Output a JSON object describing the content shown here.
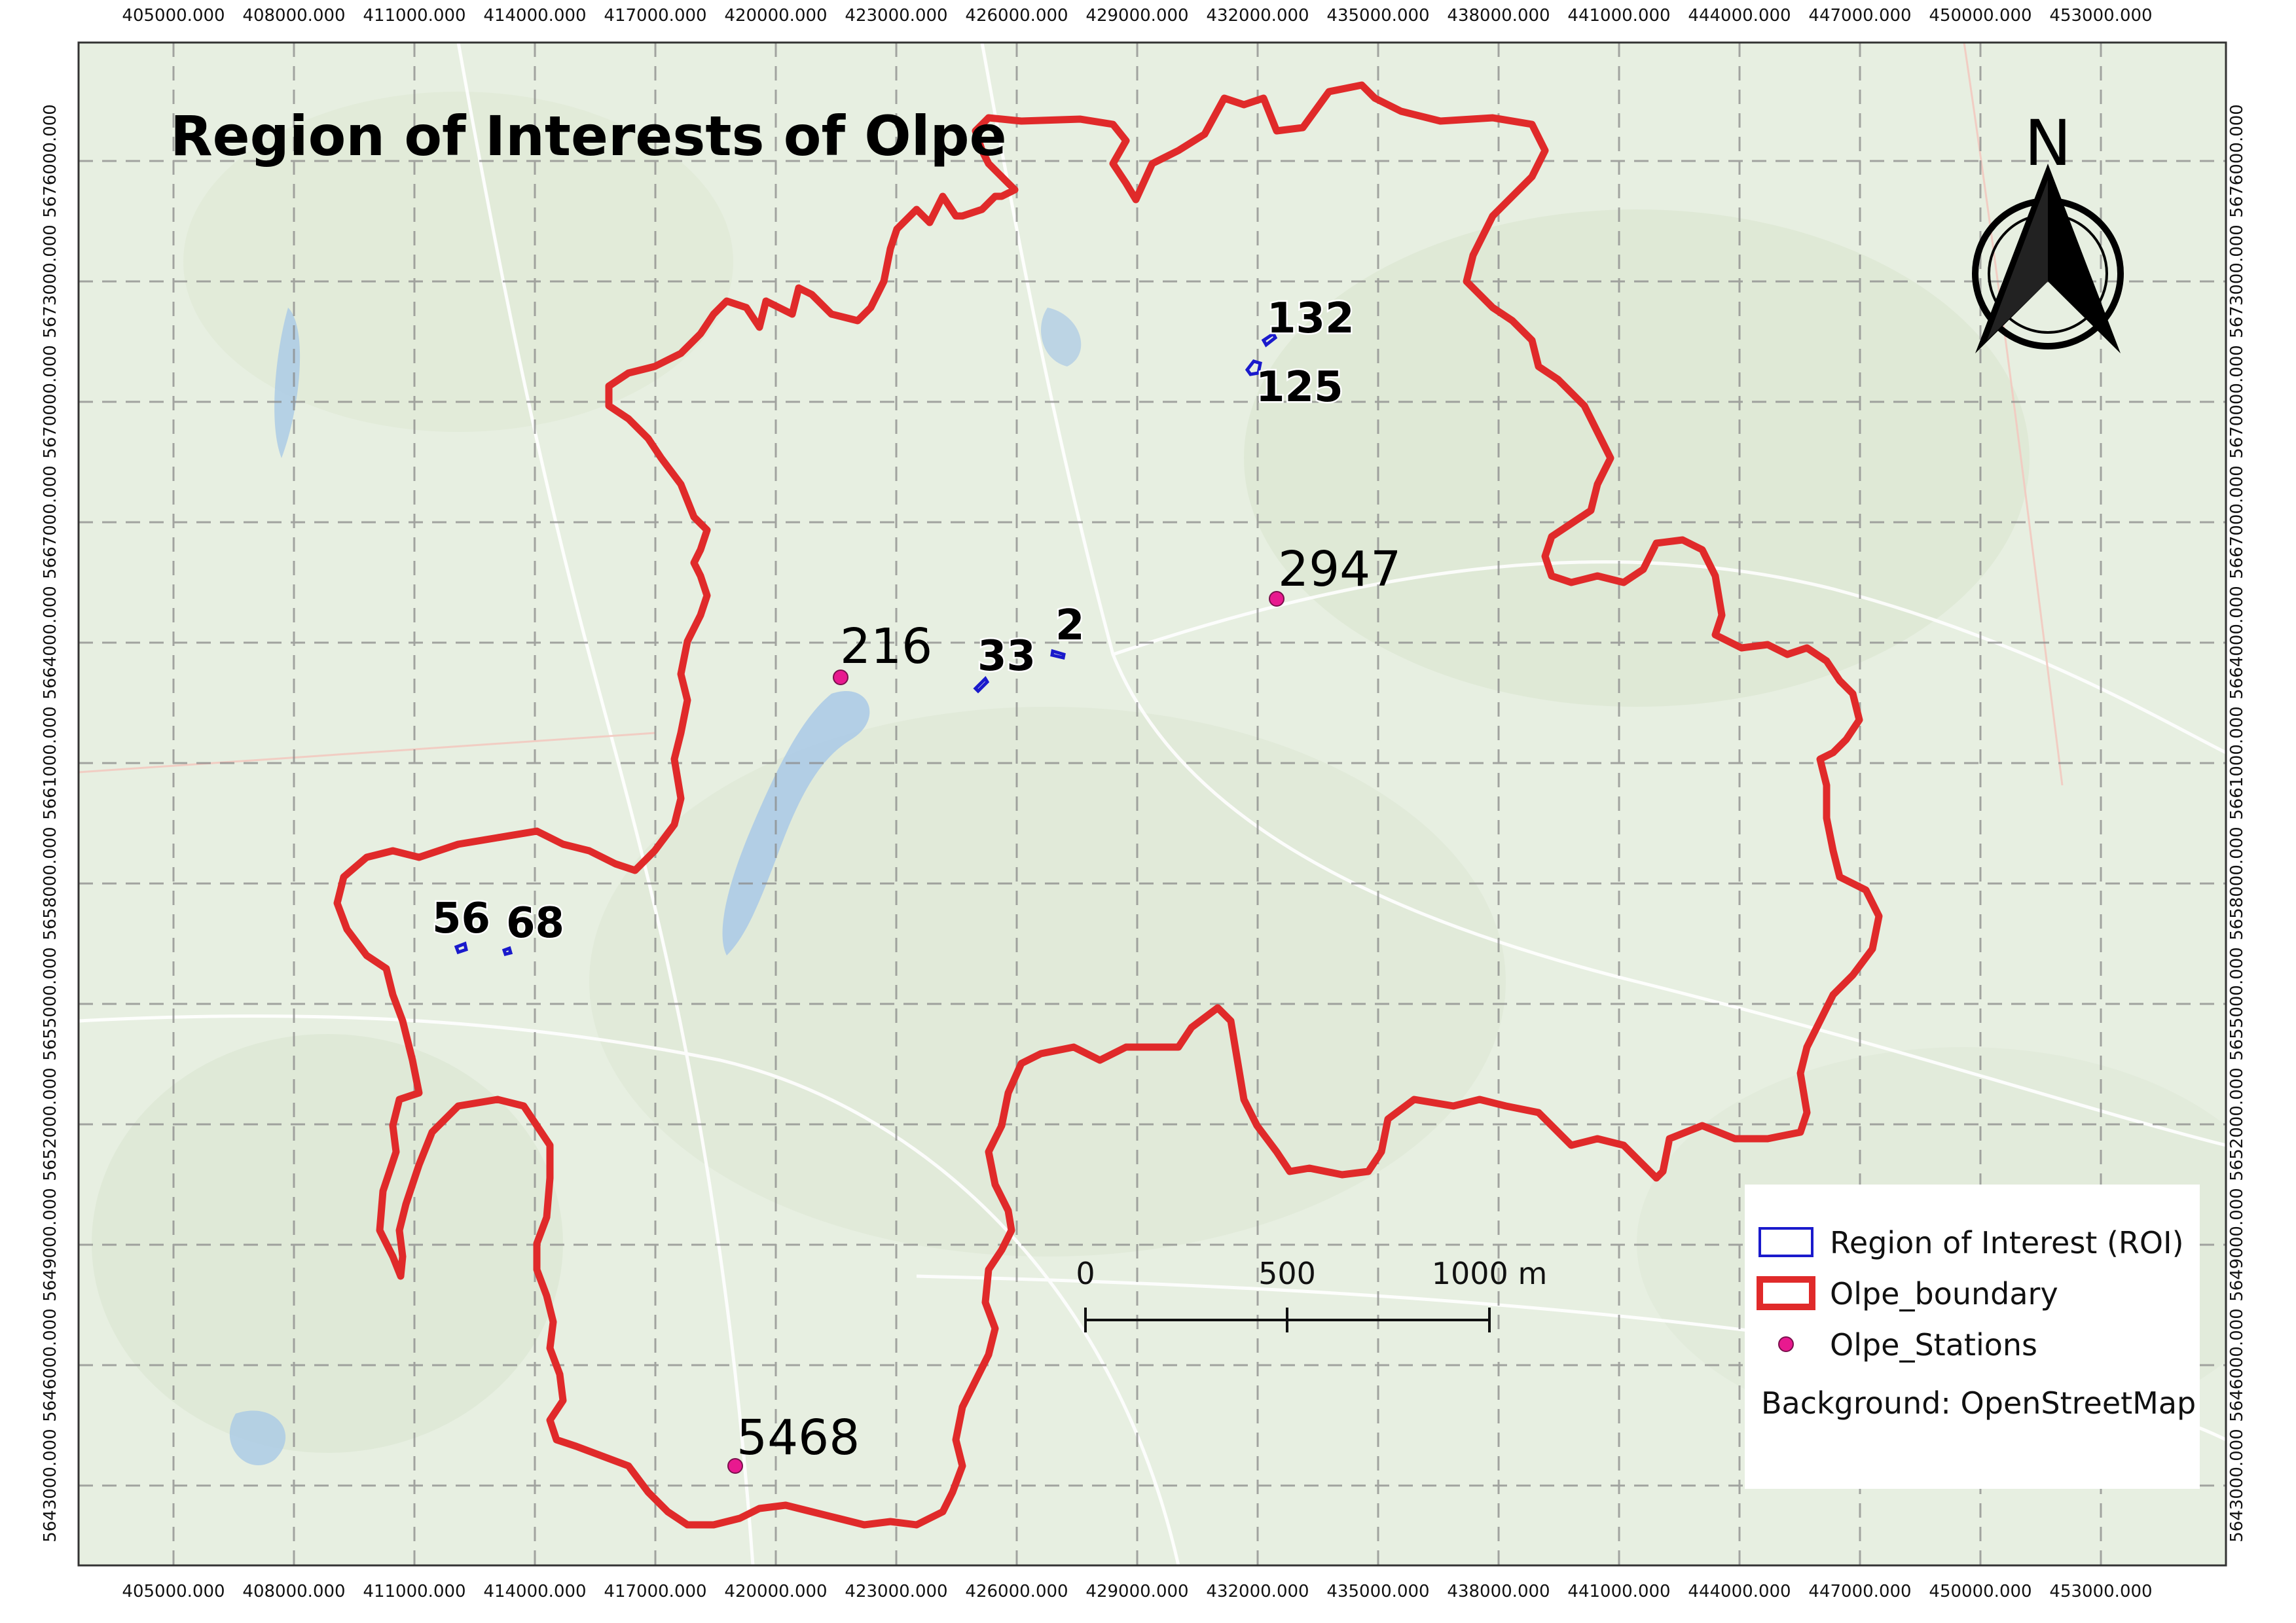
{
  "title": "Region of Interests of Olpe",
  "x_ticks": [
    "405000.000",
    "408000.000",
    "411000.000",
    "414000.000",
    "417000.000",
    "420000.000",
    "423000.000",
    "426000.000",
    "429000.000",
    "432000.000",
    "435000.000",
    "438000.000",
    "441000.000",
    "444000.000",
    "447000.000",
    "450000.000",
    "453000.000"
  ],
  "y_ticks": [
    "5643000.000",
    "5646000.000",
    "5649000.000",
    "5652000.000",
    "5655000.000",
    "5658000.000",
    "5661000.000",
    "5664000.000",
    "5667000.000",
    "5670000.000",
    "5673000.000",
    "5676000.000"
  ],
  "north_arrow": {
    "label": "N",
    "icon": "north-arrow-icon"
  },
  "stations": [
    {
      "label": "216"
    },
    {
      "label": "2947"
    },
    {
      "label": "5468"
    }
  ],
  "rois": [
    {
      "label": "132"
    },
    {
      "label": "125"
    },
    {
      "label": "33"
    },
    {
      "label": "2"
    },
    {
      "label": "56"
    },
    {
      "label": "68"
    }
  ],
  "scale_bar": {
    "labels": [
      "0",
      "500",
      "1000 m"
    ]
  },
  "legend": {
    "roi": "Region of Interest (ROI)",
    "boundary": "Olpe_boundary",
    "stations": "Olpe_Stations",
    "background": "Background: OpenStreetMap"
  },
  "colors": {
    "boundary": "#e02a2a",
    "roi": "#1a1acc",
    "station": "#e8198f",
    "map_base": "#e7efe1",
    "grid": "#8a8a8a"
  }
}
